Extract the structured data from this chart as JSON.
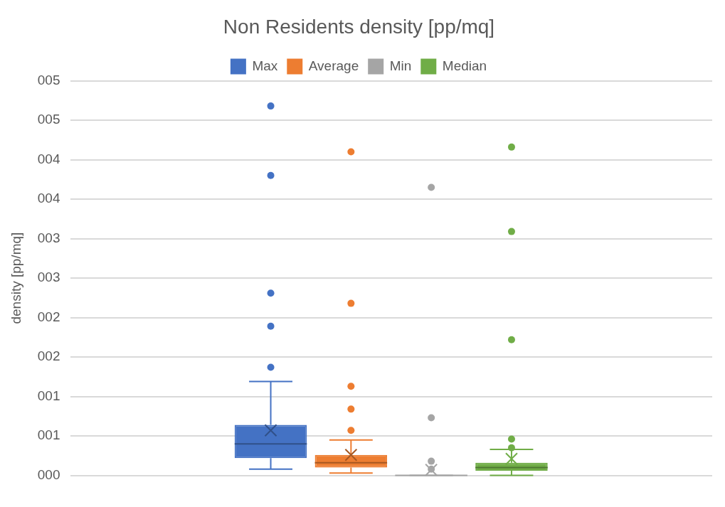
{
  "chart_data": {
    "type": "box",
    "title": "Non Residents density [pp/mq]",
    "ylabel": "density [pp/mq]",
    "categories": [
      null
    ],
    "series": [
      {
        "name": "Max",
        "color": "#4472c4",
        "boxes": [
          {
            "low": 0.08,
            "q1": 0.22,
            "median": 0.4,
            "q3": 0.64,
            "high": 1.19,
            "mean": 0.57,
            "outliers": [
              4.68,
              3.8,
              2.31,
              1.89,
              1.37
            ]
          }
        ]
      },
      {
        "name": "Average",
        "color": "#ed7d31",
        "boxes": [
          {
            "low": 0.03,
            "q1": 0.1,
            "median": 0.16,
            "q3": 0.26,
            "high": 0.45,
            "mean": 0.26,
            "outliers": [
              4.1,
              2.18,
              1.13,
              0.84,
              0.57
            ]
          }
        ]
      },
      {
        "name": "Min",
        "color": "#a5a5a5",
        "boxes": [
          {
            "low": 0,
            "q1": 0,
            "median": 0,
            "q3": 0,
            "high": 0,
            "mean": 0.07,
            "outliers": [
              3.65,
              0.73,
              0.18,
              0.08
            ]
          }
        ]
      },
      {
        "name": "Median",
        "color": "#70ad47",
        "boxes": [
          {
            "low": 0,
            "q1": 0.06,
            "median": 0.1,
            "q3": 0.16,
            "high": 0.33,
            "mean": 0.21,
            "outliers": [
              4.16,
              3.09,
              1.72,
              0.46,
              0.35
            ]
          }
        ]
      }
    ],
    "ylim": [
      0,
      5
    ],
    "yticks": [
      {
        "value": 0,
        "label": "000"
      },
      {
        "value": 0.5,
        "label": "001"
      },
      {
        "value": 1,
        "label": "001"
      },
      {
        "value": 1.5,
        "label": "002"
      },
      {
        "value": 2,
        "label": "002"
      },
      {
        "value": 2.5,
        "label": "003"
      },
      {
        "value": 3,
        "label": "003"
      },
      {
        "value": 3.5,
        "label": "004"
      },
      {
        "value": 4,
        "label": "004"
      },
      {
        "value": 4.5,
        "label": "005"
      },
      {
        "value": 5,
        "label": "005"
      }
    ],
    "grid": "y",
    "legend": "top",
    "marker": "circle"
  }
}
